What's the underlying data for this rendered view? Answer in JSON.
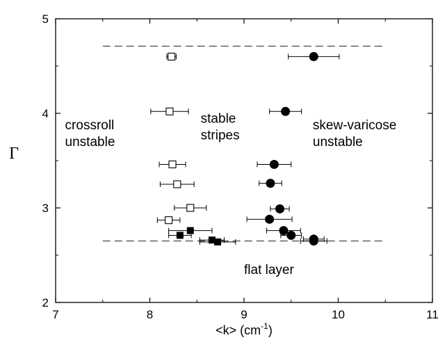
{
  "chart_data": {
    "type": "scatter",
    "title": "",
    "xlabel": "<k>  (cm",
    "xlabel_superscript": "-1",
    "xlabel_suffix": ")",
    "ylabel": "Γ",
    "xlim": [
      7,
      11
    ],
    "ylim": [
      2,
      5
    ],
    "x_ticks": [
      7,
      8,
      9,
      10,
      11
    ],
    "x_tick_labels": [
      "7",
      "8",
      "9",
      "10",
      "11"
    ],
    "y_ticks": [
      2,
      3,
      4,
      5
    ],
    "y_tick_labels": [
      "2",
      "3",
      "4",
      "5"
    ],
    "grid": false,
    "reference_lines": [
      {
        "style": "dashed",
        "y": 4.71,
        "x_from": 7.5,
        "x_to": 10.5
      },
      {
        "style": "dashed",
        "y": 2.65,
        "x_from": 7.5,
        "x_to": 10.5
      }
    ],
    "annotations": [
      {
        "lines": [
          "crossroll",
          "unstable"
        ],
        "x": 7.1,
        "y": 3.83
      },
      {
        "lines": [
          "stable",
          "stripes"
        ],
        "x": 8.54,
        "y": 3.9
      },
      {
        "lines": [
          "skew-varicose",
          "unstable"
        ],
        "x": 9.73,
        "y": 3.83
      },
      {
        "lines": [
          "flat layer"
        ],
        "x": 9.0,
        "y": 2.3
      }
    ],
    "series": [
      {
        "marker": "open-square",
        "points": [
          {
            "x": 8.23,
            "y": 4.6,
            "xerr": 0.05
          },
          {
            "x": 8.21,
            "y": 4.02,
            "xerr": 0.2
          },
          {
            "x": 8.24,
            "y": 3.46,
            "xerr": 0.14
          },
          {
            "x": 8.29,
            "y": 3.25,
            "xerr": 0.18
          },
          {
            "x": 8.43,
            "y": 3.0,
            "xerr": 0.17
          },
          {
            "x": 8.2,
            "y": 2.87,
            "xerr": 0.12
          }
        ]
      },
      {
        "marker": "filled-square",
        "points": [
          {
            "x": 8.43,
            "y": 2.76,
            "xerr": 0.23
          },
          {
            "x": 8.32,
            "y": 2.71,
            "xerr": 0.12
          },
          {
            "x": 8.66,
            "y": 2.66,
            "xerr": 0.13
          },
          {
            "x": 8.72,
            "y": 2.64,
            "xerr": 0.19
          }
        ]
      },
      {
        "marker": "filled-circle",
        "points": [
          {
            "x": 9.74,
            "y": 4.6,
            "xerr": 0.27
          },
          {
            "x": 9.44,
            "y": 4.02,
            "xerr": 0.17
          },
          {
            "x": 9.32,
            "y": 3.46,
            "xerr": 0.18
          },
          {
            "x": 9.28,
            "y": 3.26,
            "xerr": 0.12
          },
          {
            "x": 9.38,
            "y": 2.99,
            "xerr": 0.1
          },
          {
            "x": 9.27,
            "y": 2.88,
            "xerr": 0.24
          },
          {
            "x": 9.42,
            "y": 2.76,
            "xerr": 0.18
          },
          {
            "x": 9.5,
            "y": 2.71,
            "xerr": 0.11
          },
          {
            "x": 9.74,
            "y": 2.67,
            "xerr": 0.11
          },
          {
            "x": 9.74,
            "y": 2.65,
            "xerr": 0.14
          }
        ]
      }
    ]
  }
}
